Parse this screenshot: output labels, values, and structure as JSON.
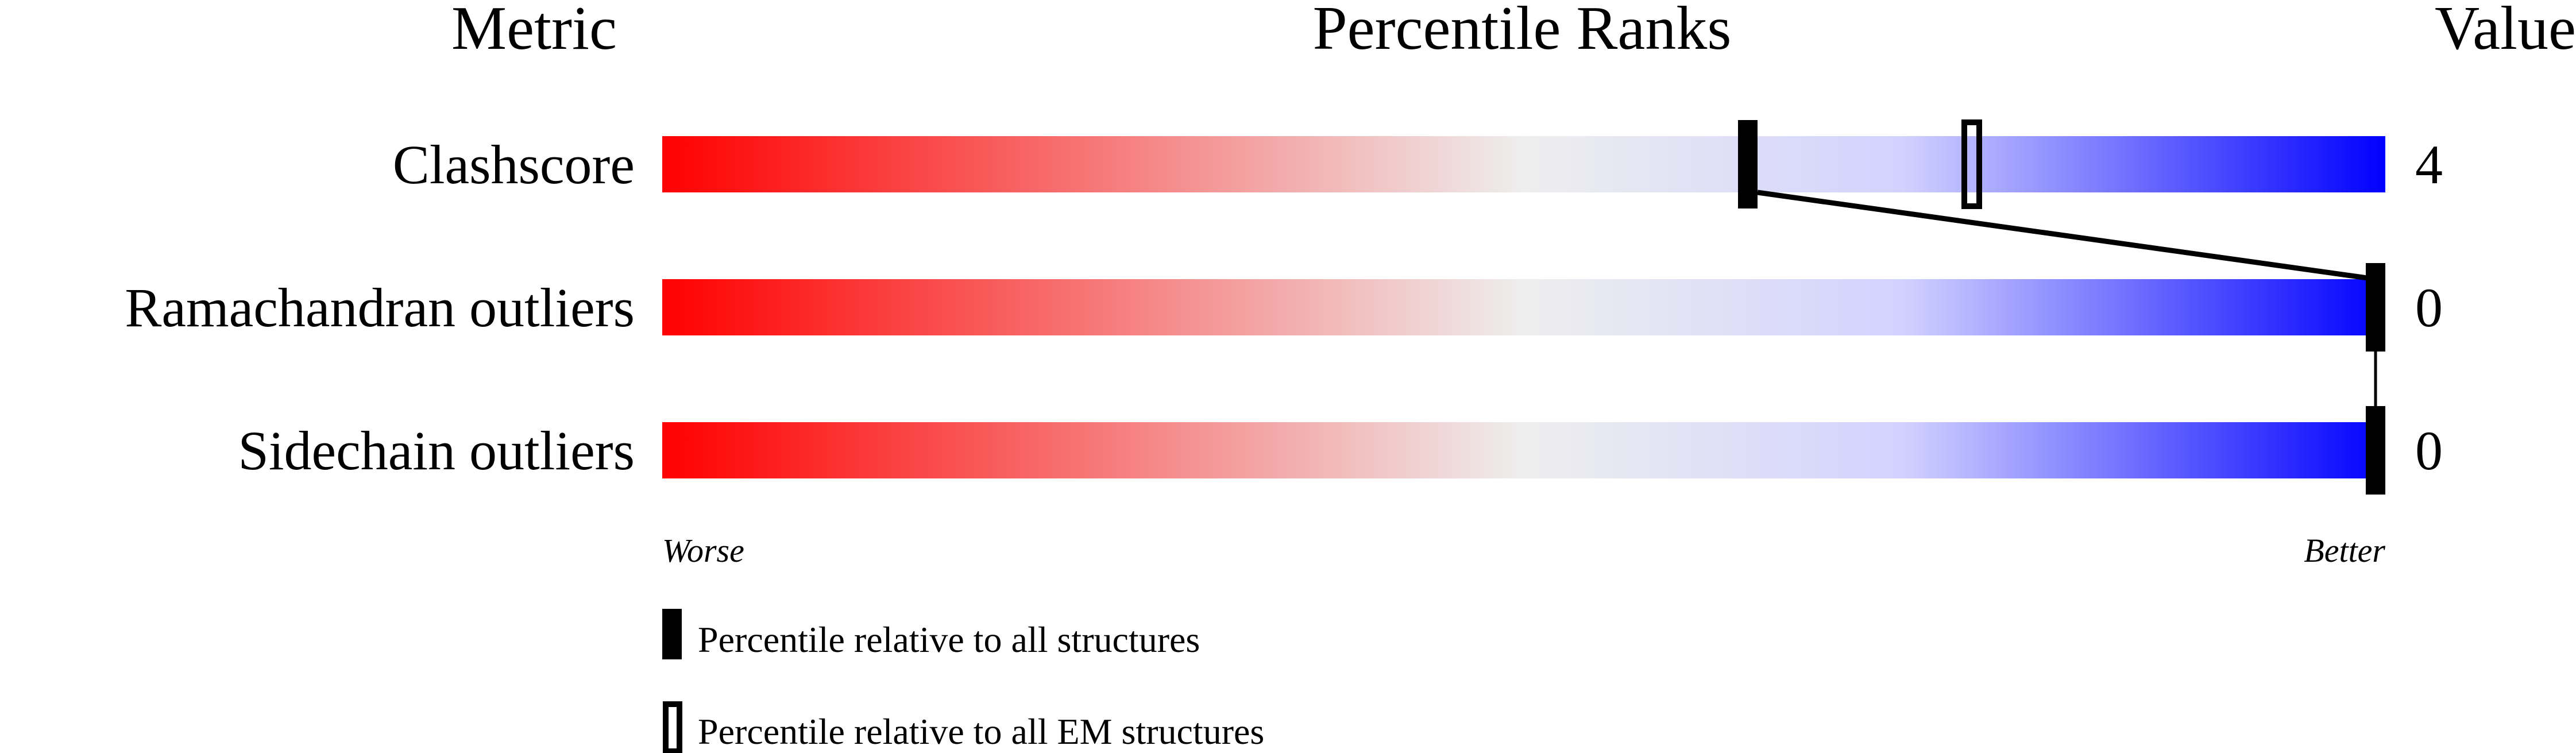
{
  "chart_data": {
    "type": "bar",
    "headers": {
      "metric": "Metric",
      "percentile": "Percentile Ranks",
      "value": "Value"
    },
    "xlim": [
      0,
      100
    ],
    "axis_labels": {
      "left": "Worse",
      "right": "Better"
    },
    "rows": [
      {
        "metric": "Clashscore",
        "value": "4",
        "percentile_all": 63,
        "percentile_em": 76
      },
      {
        "metric": "Ramachandran outliers",
        "value": "0",
        "percentile_all": 100,
        "percentile_em": null
      },
      {
        "metric": "Sidechain outliers",
        "value": "0",
        "percentile_all": 100,
        "percentile_em": null
      }
    ],
    "legend": {
      "all": "Percentile relative to all structures",
      "em": "Percentile relative to all EM structures"
    },
    "colors": {
      "worse": "#ff0000",
      "middle": "#eeeeee",
      "better": "#0000ff",
      "marker": "#000000"
    }
  }
}
